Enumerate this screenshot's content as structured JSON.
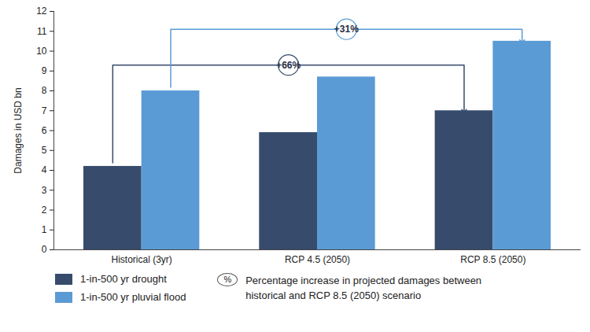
{
  "chart_data": {
    "type": "bar",
    "y_label": "Damages in USD bn",
    "categories": [
      "Historical (3yr)",
      "RCP 4.5 (2050)",
      "RCP 8.5 (2050)"
    ],
    "series": [
      {
        "name": "1-in-500 yr drought",
        "color": "#374c6d",
        "values": [
          4.2,
          5.9,
          7.0
        ]
      },
      {
        "name": "1-in-500 yr pluvial flood",
        "color": "#5b9bd5",
        "values": [
          8.0,
          8.7,
          10.5
        ]
      }
    ],
    "ylim": [
      0,
      12
    ],
    "yticks": [
      0,
      1,
      2,
      3,
      4,
      5,
      6,
      7,
      8,
      9,
      10,
      11,
      12
    ],
    "grid": false,
    "legend": "bottom",
    "annotations": [
      {
        "text": "+66%",
        "series": "1-in-500 yr drought",
        "from": "Historical (3yr)",
        "to": "RCP 8.5 (2050)"
      },
      {
        "text": "+31%",
        "series": "1-in-500 yr pluvial flood",
        "from": "Historical (3yr)",
        "to": "RCP 8.5 (2050)"
      }
    ],
    "annotation_note": {
      "symbol": "%",
      "text": "Percentage increase in projected damages between historical and RCP 8.5 (2050) scenario"
    }
  }
}
